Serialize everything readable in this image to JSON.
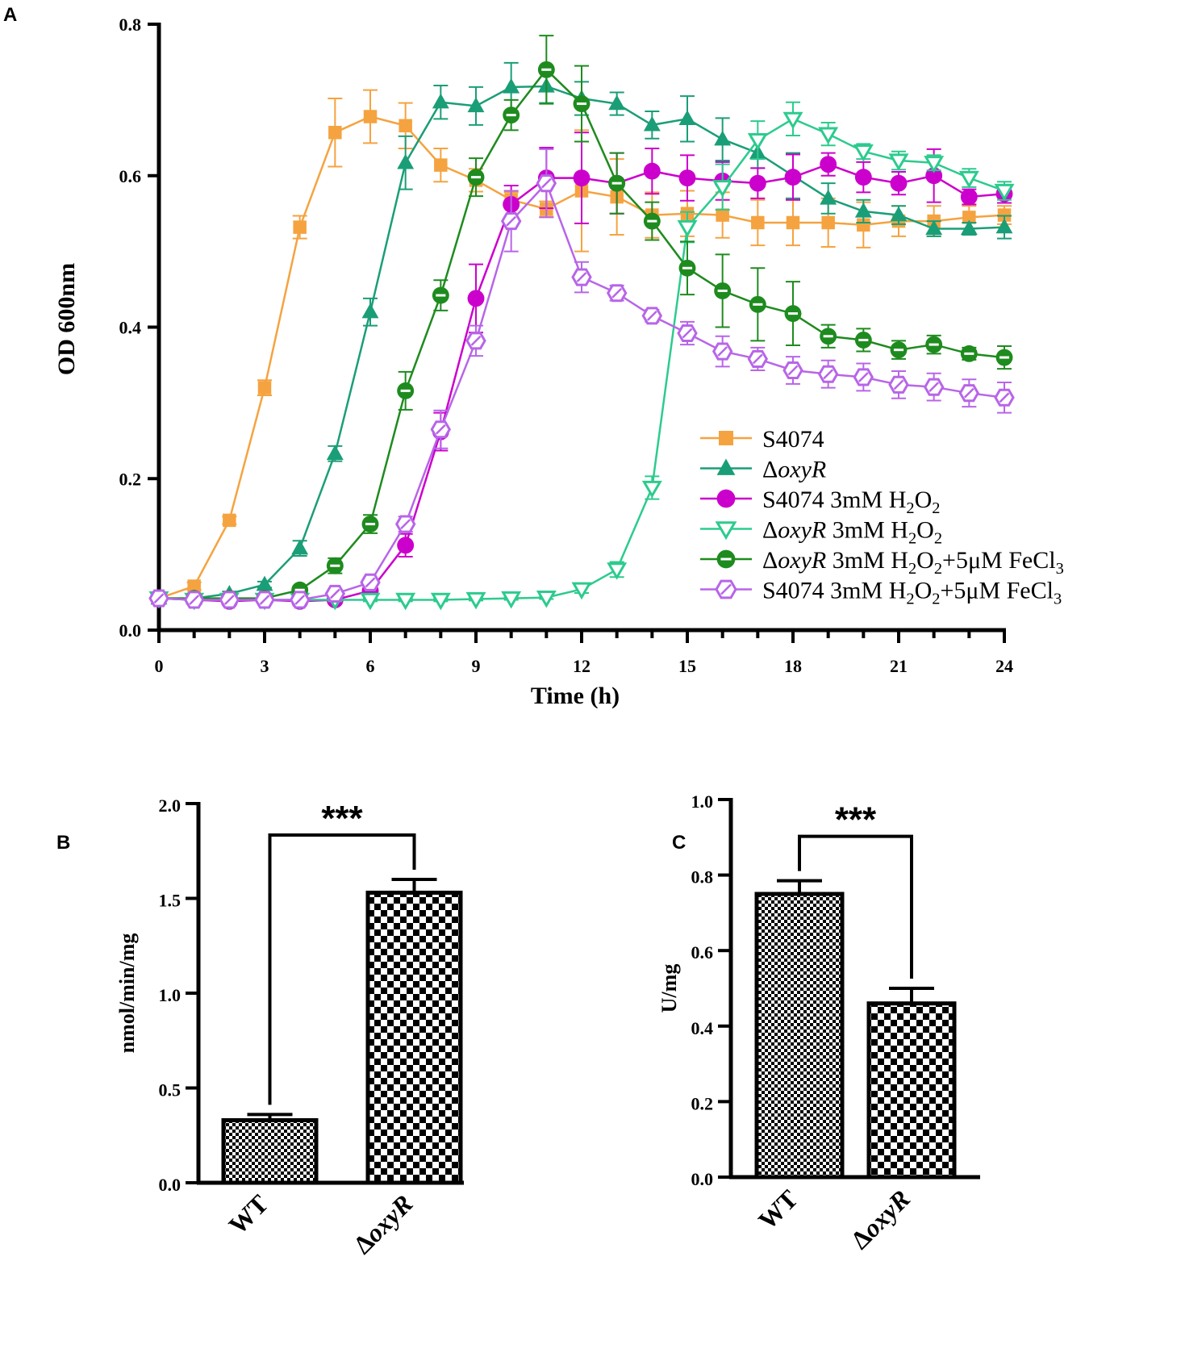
{
  "chart_data": [
    {
      "panel": "A",
      "type": "line",
      "xlabel": "Time (h)",
      "ylabel": "OD 600nm",
      "xlim": [
        0,
        24
      ],
      "ylim": [
        0,
        0.8
      ],
      "xticks": [
        0,
        3,
        6,
        9,
        12,
        15,
        18,
        21,
        24
      ],
      "xtick_labels": [
        "0",
        "3",
        "6",
        "9",
        "12",
        "15",
        "18",
        "21",
        "24"
      ],
      "yticks": [
        0,
        0.2,
        0.4,
        0.6,
        0.8
      ],
      "ytick_labels": [
        "0.0",
        "0.2",
        "0.4",
        "0.6",
        "0.8"
      ],
      "legend_position": "bottom-right",
      "series": [
        {
          "name": "S4074",
          "color": "#F5A340",
          "marker": "square",
          "x": [
            0,
            1,
            2,
            3,
            4,
            5,
            6,
            7,
            8,
            9,
            10,
            11,
            12,
            13,
            14,
            15,
            16,
            17,
            18,
            19,
            20,
            21,
            22,
            23,
            24
          ],
          "y": [
            0.042,
            0.058,
            0.145,
            0.32,
            0.532,
            0.657,
            0.678,
            0.666,
            0.614,
            0.594,
            0.568,
            0.556,
            0.58,
            0.572,
            0.548,
            0.55,
            0.548,
            0.538,
            0.538,
            0.538,
            0.535,
            0.54,
            0.54,
            0.545,
            0.548
          ],
          "err": [
            0.004,
            0.005,
            0.005,
            0.01,
            0.015,
            0.045,
            0.035,
            0.03,
            0.022,
            0.015,
            0.01,
            0.01,
            0.08,
            0.05,
            0.03,
            0.03,
            0.03,
            0.03,
            0.03,
            0.032,
            0.03,
            0.02,
            0.02,
            0.015,
            0.012
          ]
        },
        {
          "name": "ΔoxyR",
          "color": "#1A9E77",
          "marker": "triangle-up",
          "x": [
            0,
            1,
            2,
            3,
            4,
            5,
            6,
            7,
            8,
            9,
            10,
            11,
            12,
            13,
            14,
            15,
            16,
            17,
            18,
            19,
            20,
            21,
            22,
            23,
            24
          ],
          "y": [
            0.042,
            0.042,
            0.048,
            0.06,
            0.108,
            0.233,
            0.42,
            0.617,
            0.697,
            0.692,
            0.717,
            0.718,
            0.702,
            0.695,
            0.667,
            0.675,
            0.648,
            0.63,
            0.6,
            0.57,
            0.553,
            0.548,
            0.53,
            0.53,
            0.532
          ],
          "err": [
            0.003,
            0.003,
            0.003,
            0.004,
            0.01,
            0.01,
            0.018,
            0.035,
            0.022,
            0.025,
            0.032,
            0.022,
            0.022,
            0.015,
            0.018,
            0.03,
            0.028,
            0.02,
            0.03,
            0.02,
            0.015,
            0.012,
            0.01,
            0.008,
            0.015
          ]
        },
        {
          "name": "S4074 3mM H₂O₂",
          "color": "#CC00CC",
          "marker": "circle",
          "x": [
            0,
            1,
            2,
            3,
            4,
            5,
            6,
            7,
            8,
            9,
            10,
            11,
            12,
            13,
            14,
            15,
            16,
            17,
            18,
            19,
            20,
            21,
            22,
            23,
            24
          ],
          "y": [
            0.042,
            0.04,
            0.038,
            0.04,
            0.038,
            0.04,
            0.052,
            0.112,
            0.262,
            0.438,
            0.562,
            0.597,
            0.597,
            0.59,
            0.606,
            0.597,
            0.593,
            0.59,
            0.598,
            0.615,
            0.598,
            0.59,
            0.6,
            0.572,
            0.576
          ],
          "err": [
            0.003,
            0.003,
            0.003,
            0.003,
            0.003,
            0.003,
            0.005,
            0.015,
            0.025,
            0.045,
            0.025,
            0.04,
            0.06,
            0.04,
            0.03,
            0.03,
            0.025,
            0.02,
            0.03,
            0.015,
            0.02,
            0.015,
            0.035,
            0.01,
            0.012
          ]
        },
        {
          "name": "ΔoxyR 3mM H₂O₂",
          "color": "#2CCB8E",
          "marker": "triangle-down",
          "x": [
            0,
            1,
            2,
            3,
            4,
            5,
            6,
            7,
            8,
            9,
            10,
            11,
            12,
            13,
            14,
            15,
            16,
            17,
            18,
            19,
            20,
            21,
            22,
            23,
            24
          ],
          "y": [
            0.042,
            0.04,
            0.04,
            0.04,
            0.04,
            0.04,
            0.04,
            0.04,
            0.04,
            0.041,
            0.042,
            0.043,
            0.054,
            0.08,
            0.188,
            0.532,
            0.585,
            0.647,
            0.675,
            0.655,
            0.632,
            0.62,
            0.617,
            0.597,
            0.58
          ],
          "err": [
            0.002,
            0.002,
            0.002,
            0.002,
            0.002,
            0.002,
            0.002,
            0.002,
            0.002,
            0.002,
            0.002,
            0.002,
            0.005,
            0.01,
            0.015,
            0.02,
            0.03,
            0.025,
            0.022,
            0.015,
            0.01,
            0.012,
            0.01,
            0.012,
            0.012
          ]
        },
        {
          "name": "ΔoxyR 3mM H₂O₂+5μM FeCl₃",
          "color": "#1E8B1E",
          "marker": "circle-half",
          "x": [
            0,
            1,
            2,
            3,
            4,
            5,
            6,
            7,
            8,
            9,
            10,
            11,
            12,
            13,
            14,
            15,
            16,
            17,
            18,
            19,
            20,
            21,
            22,
            23,
            24
          ],
          "y": [
            0.042,
            0.042,
            0.042,
            0.042,
            0.053,
            0.085,
            0.14,
            0.316,
            0.442,
            0.598,
            0.68,
            0.74,
            0.695,
            0.59,
            0.54,
            0.478,
            0.448,
            0.43,
            0.418,
            0.388,
            0.383,
            0.37,
            0.377,
            0.365,
            0.36
          ],
          "err": [
            0.003,
            0.003,
            0.003,
            0.003,
            0.005,
            0.01,
            0.012,
            0.025,
            0.02,
            0.025,
            0.02,
            0.045,
            0.05,
            0.04,
            0.025,
            0.035,
            0.048,
            0.048,
            0.042,
            0.015,
            0.015,
            0.012,
            0.012,
            0.008,
            0.015
          ]
        },
        {
          "name": "S4074 3mM H₂O₂+5μM FeCl₃",
          "color": "#B865E8",
          "marker": "hexagon-open",
          "x": [
            0,
            1,
            2,
            3,
            4,
            5,
            6,
            7,
            8,
            9,
            10,
            11,
            12,
            13,
            14,
            15,
            16,
            17,
            18,
            19,
            20,
            21,
            22,
            23,
            24
          ],
          "y": [
            0.042,
            0.04,
            0.04,
            0.04,
            0.04,
            0.048,
            0.063,
            0.14,
            0.265,
            0.382,
            0.54,
            0.59,
            0.466,
            0.445,
            0.415,
            0.392,
            0.368,
            0.358,
            0.343,
            0.338,
            0.334,
            0.324,
            0.321,
            0.313,
            0.307
          ],
          "err": [
            0.003,
            0.003,
            0.003,
            0.003,
            0.003,
            0.005,
            0.005,
            0.01,
            0.025,
            0.02,
            0.04,
            0.045,
            0.02,
            0.01,
            0.008,
            0.015,
            0.02,
            0.015,
            0.018,
            0.018,
            0.018,
            0.018,
            0.018,
            0.018,
            0.02
          ]
        }
      ]
    },
    {
      "panel": "B",
      "type": "bar",
      "categories": [
        "WT",
        "ΔoxyR"
      ],
      "values": [
        0.33,
        1.53
      ],
      "errors": [
        0.03,
        0.07
      ],
      "ylabel": "nmol/min/mg",
      "ylim": [
        0,
        2.0
      ],
      "yticks": [
        0,
        0.5,
        1.0,
        1.5,
        2.0
      ],
      "ytick_labels": [
        "0.0",
        "0.5",
        "1.0",
        "1.5",
        "2.0"
      ],
      "significance": "***"
    },
    {
      "panel": "C",
      "type": "bar",
      "categories": [
        "WT",
        "ΔoxyR"
      ],
      "values": [
        0.75,
        0.46
      ],
      "errors": [
        0.035,
        0.04
      ],
      "ylabel": "U/mg",
      "ylim": [
        0,
        1.0
      ],
      "yticks": [
        0,
        0.2,
        0.4,
        0.6,
        0.8,
        1.0
      ],
      "ytick_labels": [
        "0.0",
        "0.2",
        "0.4",
        "0.6",
        "0.8",
        "1.0"
      ],
      "significance": "***"
    }
  ]
}
